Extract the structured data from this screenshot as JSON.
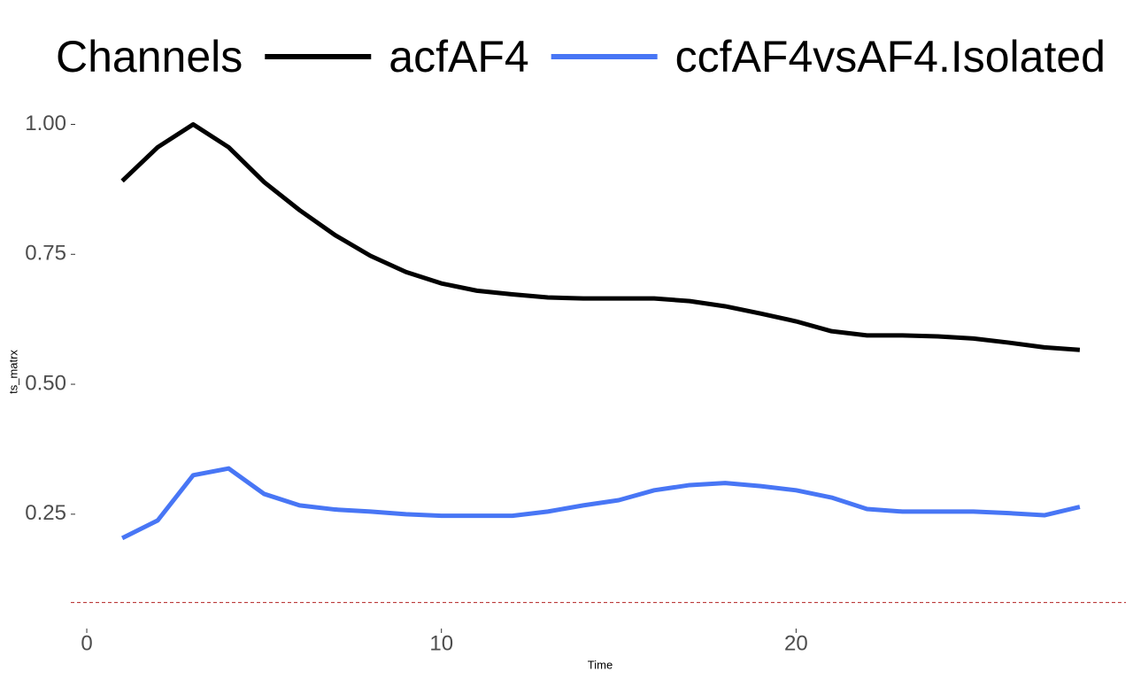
{
  "chart_data": {
    "type": "line",
    "x_label": "Time",
    "y_label": "ts_matrx",
    "legend_title": "Channels",
    "x": [
      1,
      2,
      3,
      4,
      5,
      6,
      7,
      8,
      9,
      10,
      11,
      12,
      13,
      14,
      15,
      16,
      17,
      18,
      19,
      20,
      21,
      22,
      23,
      24,
      25,
      26,
      27,
      28
    ],
    "series": [
      {
        "name": "acfAF4",
        "color": "#000000",
        "values": [
          0.891,
          0.956,
          1.0,
          0.956,
          0.889,
          0.835,
          0.787,
          0.747,
          0.716,
          0.694,
          0.68,
          0.673,
          0.667,
          0.665,
          0.665,
          0.665,
          0.66,
          0.65,
          0.636,
          0.621,
          0.602,
          0.594,
          0.594,
          0.592,
          0.588,
          0.58,
          0.571,
          0.566
        ]
      },
      {
        "name": "ccfAF4vsAF4.Isolated",
        "color": "#4876f5",
        "values": [
          0.204,
          0.238,
          0.325,
          0.338,
          0.289,
          0.267,
          0.259,
          0.255,
          0.25,
          0.247,
          0.247,
          0.247,
          0.255,
          0.267,
          0.277,
          0.296,
          0.306,
          0.31,
          0.304,
          0.296,
          0.282,
          0.26,
          0.255,
          0.255,
          0.255,
          0.252,
          0.248,
          0.264
        ]
      }
    ],
    "xlim": [
      -0.45,
      29.3
    ],
    "ylim": [
      0.03,
      1.04
    ],
    "xticks": [
      0,
      10,
      20
    ],
    "yticks": [
      {
        "value": 0.25,
        "label": "0.25"
      },
      {
        "value": 0.5,
        "label": "0.50"
      },
      {
        "value": 0.75,
        "label": "0.75"
      },
      {
        "value": 1.0,
        "label": "1.00"
      }
    ],
    "reference_line": 0.08,
    "reference_color": "#b22222",
    "grid": false,
    "legend_position": "top"
  }
}
